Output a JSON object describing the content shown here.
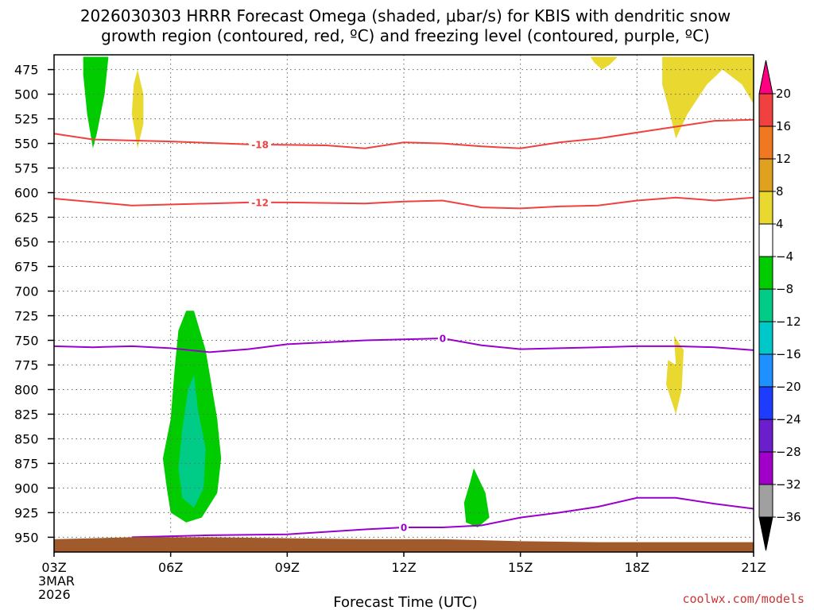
{
  "chart_data": {
    "type": "heatmap",
    "title_line1": "2026030303 HRRR Forecast Omega (shaded, μbar/s) for KBIS with dendritic snow",
    "title_line2": "growth region (contoured, red, ºC) and freezing level (contoured, purple, ºC)",
    "xlabel": "Forecast Time (UTC)",
    "credit": "coolwx.com/models",
    "x_ticks": [
      {
        "hour": 0,
        "label": "03Z"
      },
      {
        "hour": 3,
        "label": "06Z"
      },
      {
        "hour": 6,
        "label": "09Z"
      },
      {
        "hour": 9,
        "label": "12Z"
      },
      {
        "hour": 12,
        "label": "15Z"
      },
      {
        "hour": 15,
        "label": "18Z"
      },
      {
        "hour": 18,
        "label": "21Z"
      }
    ],
    "date_line1": "3MAR",
    "date_line2": "2026",
    "x_range": [
      0,
      18
    ],
    "y_range": [
      460,
      965
    ],
    "y_ticks": [
      475,
      500,
      525,
      550,
      575,
      600,
      625,
      650,
      675,
      700,
      725,
      750,
      775,
      800,
      825,
      850,
      875,
      900,
      925,
      950
    ],
    "colorbar": {
      "levels": [
        "20",
        "16",
        "12",
        "8",
        "4",
        "−4",
        "−8",
        "−12",
        "−16",
        "−20",
        "−24",
        "−28",
        "−32",
        "−36"
      ],
      "colors": [
        "#ff0080",
        "#f04040",
        "#f07820",
        "#e0a020",
        "#e8d830",
        "#ffffff",
        "#00cc00",
        "#00cc88",
        "#00c8c8",
        "#1e90ff",
        "#1e3cff",
        "#6a1ecc",
        "#a000c8",
        "#a0a0a0",
        "#000000"
      ]
    },
    "omega_areas": [
      {
        "name": "omega-area-upper-left-green",
        "color": "#00cc00",
        "points": [
          [
            0.75,
            462
          ],
          [
            1.4,
            462
          ],
          [
            1.3,
            500
          ],
          [
            1.1,
            540
          ],
          [
            1.0,
            555
          ],
          [
            0.85,
            520
          ],
          [
            0.75,
            480
          ]
        ]
      },
      {
        "name": "omega-area-upper-yellow",
        "color": "#e8d830",
        "points": [
          [
            2.15,
            475
          ],
          [
            2.3,
            500
          ],
          [
            2.3,
            530
          ],
          [
            2.15,
            555
          ],
          [
            2.0,
            520
          ],
          [
            2.05,
            490
          ]
        ]
      },
      {
        "name": "omega-area-top-small-yellow",
        "color": "#e8d830",
        "points": [
          [
            13.8,
            462
          ],
          [
            14.5,
            462
          ],
          [
            14.3,
            470
          ],
          [
            14.1,
            475
          ],
          [
            13.9,
            468
          ]
        ]
      },
      {
        "name": "omega-area-top-right-yellow",
        "color": "#e8d830",
        "points": [
          [
            15.65,
            462
          ],
          [
            18.0,
            462
          ],
          [
            18.0,
            510
          ],
          [
            17.7,
            490
          ],
          [
            17.2,
            475
          ],
          [
            16.8,
            490
          ],
          [
            16.3,
            520
          ],
          [
            16.0,
            545
          ],
          [
            15.85,
            520
          ],
          [
            15.65,
            490
          ]
        ]
      },
      {
        "name": "omega-area-lower-green",
        "color": "#00cc00",
        "points": [
          [
            3.6,
            720
          ],
          [
            3.9,
            760
          ],
          [
            4.2,
            830
          ],
          [
            4.3,
            870
          ],
          [
            4.2,
            905
          ],
          [
            3.8,
            930
          ],
          [
            3.4,
            935
          ],
          [
            3.0,
            925
          ],
          [
            2.9,
            900
          ],
          [
            2.8,
            870
          ],
          [
            3.0,
            830
          ],
          [
            3.1,
            780
          ],
          [
            3.2,
            740
          ],
          [
            3.4,
            720
          ]
        ]
      },
      {
        "name": "omega-area-lower-teal",
        "color": "#00cc88",
        "points": [
          [
            3.6,
            785
          ],
          [
            3.7,
            820
          ],
          [
            3.9,
            860
          ],
          [
            3.85,
            900
          ],
          [
            3.6,
            920
          ],
          [
            3.3,
            910
          ],
          [
            3.2,
            880
          ],
          [
            3.3,
            840
          ],
          [
            3.45,
            800
          ]
        ]
      },
      {
        "name": "omega-area-lower-middle-green",
        "color": "#00cc00",
        "points": [
          [
            10.8,
            880
          ],
          [
            11.1,
            905
          ],
          [
            11.2,
            930
          ],
          [
            10.9,
            940
          ],
          [
            10.6,
            935
          ],
          [
            10.55,
            915
          ],
          [
            10.7,
            895
          ]
        ]
      },
      {
        "name": "omega-area-lower-right-yellow",
        "color": "#e8d830",
        "points": [
          [
            16.0,
            775
          ],
          [
            15.95,
            745
          ],
          [
            16.2,
            760
          ],
          [
            16.15,
            800
          ],
          [
            16.0,
            825
          ],
          [
            15.75,
            795
          ],
          [
            15.8,
            770
          ]
        ]
      }
    ],
    "contours": [
      {
        "name": "contour-minus18",
        "color": "#f04040",
        "label": "-18",
        "label_hour": 5.3,
        "points": [
          [
            0,
            540
          ],
          [
            1,
            546
          ],
          [
            3,
            548
          ],
          [
            5,
            551
          ],
          [
            7,
            552
          ],
          [
            8,
            555
          ],
          [
            9,
            549
          ],
          [
            10,
            550
          ],
          [
            11,
            553
          ],
          [
            12,
            555
          ],
          [
            13,
            549
          ],
          [
            14,
            545
          ],
          [
            15,
            539
          ],
          [
            16,
            533
          ],
          [
            17,
            527
          ],
          [
            18,
            526
          ]
        ]
      },
      {
        "name": "contour-minus12",
        "color": "#f04040",
        "label": "-12",
        "label_hour": 5.3,
        "points": [
          [
            0,
            606
          ],
          [
            2,
            613
          ],
          [
            4,
            611
          ],
          [
            5,
            610
          ],
          [
            6,
            610
          ],
          [
            8,
            611
          ],
          [
            9,
            609
          ],
          [
            10,
            608
          ],
          [
            11,
            615
          ],
          [
            12,
            616
          ],
          [
            13,
            614
          ],
          [
            14,
            613
          ],
          [
            15,
            608
          ],
          [
            16,
            605
          ],
          [
            17,
            608
          ],
          [
            18,
            605
          ]
        ]
      },
      {
        "name": "contour-zero-upper",
        "color": "#9900cc",
        "label": "0",
        "label_hour": 10.0,
        "points": [
          [
            0,
            756
          ],
          [
            1,
            757
          ],
          [
            2,
            756
          ],
          [
            3,
            758
          ],
          [
            4,
            762
          ],
          [
            5,
            759
          ],
          [
            6,
            754
          ],
          [
            7,
            752
          ],
          [
            8,
            750
          ],
          [
            9,
            749
          ],
          [
            10,
            748
          ],
          [
            11,
            755
          ],
          [
            12,
            759
          ],
          [
            13,
            758
          ],
          [
            14,
            757
          ],
          [
            15,
            756
          ],
          [
            16,
            756
          ],
          [
            17,
            757
          ],
          [
            18,
            760
          ]
        ]
      },
      {
        "name": "contour-zero-lower",
        "color": "#9900cc",
        "label": "0",
        "label_hour": 9.0,
        "points": [
          [
            2,
            950
          ],
          [
            4,
            948
          ],
          [
            6,
            947
          ],
          [
            8,
            942
          ],
          [
            9,
            940
          ],
          [
            10,
            940
          ],
          [
            11,
            938
          ],
          [
            12,
            930
          ],
          [
            13,
            925
          ],
          [
            14,
            919
          ],
          [
            15,
            910
          ],
          [
            16,
            910
          ],
          [
            17,
            916
          ],
          [
            18,
            921
          ]
        ]
      }
    ],
    "terrain": {
      "color": "#a05a2c",
      "points": [
        [
          0,
          952
        ],
        [
          2,
          950
        ],
        [
          4,
          950
        ],
        [
          6,
          951
        ],
        [
          8,
          952
        ],
        [
          10,
          952
        ],
        [
          12,
          954
        ],
        [
          14,
          955
        ],
        [
          16,
          955
        ],
        [
          18,
          955
        ]
      ]
    }
  }
}
